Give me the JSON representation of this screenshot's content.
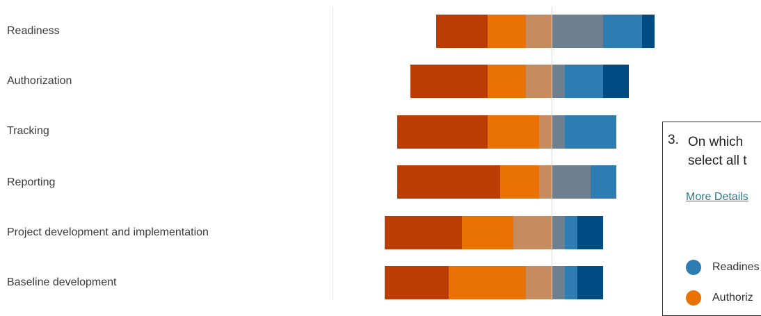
{
  "rows": [
    {
      "label": "Readiness"
    },
    {
      "label": "Authorization"
    },
    {
      "label": "Tracking"
    },
    {
      "label": "Reporting"
    },
    {
      "label": "Project development and implementation"
    },
    {
      "label": "Baseline development"
    }
  ],
  "colors": {
    "dark_orange": "#bb3d04",
    "orange": "#ea7104",
    "tan": "#c68b5e",
    "gray_blue": "#6e8090",
    "blue": "#2d7db3",
    "dark_blue": "#004b82"
  },
  "chart_data": {
    "type": "bar",
    "orientation": "horizontal",
    "stacking": "diverging",
    "categories": [
      "Readiness",
      "Authorization",
      "Tracking",
      "Reporting",
      "Project development and implementation",
      "Baseline development"
    ],
    "series": [
      {
        "color": "#bb3d04",
        "side": "negative",
        "values": [
          4,
          6,
          7,
          8,
          6,
          5
        ]
      },
      {
        "color": "#ea7104",
        "side": "negative",
        "values": [
          3,
          3,
          4,
          3,
          4,
          6
        ]
      },
      {
        "color": "#c68b5e",
        "side": "negative",
        "values": [
          2,
          2,
          1,
          1,
          3,
          2
        ]
      },
      {
        "color": "#6e8090",
        "side": "positive",
        "values": [
          4,
          1,
          1,
          3,
          1,
          1
        ]
      },
      {
        "color": "#2d7db3",
        "side": "positive",
        "values": [
          3,
          3,
          4,
          2,
          1,
          1
        ]
      },
      {
        "color": "#004b82",
        "side": "positive",
        "values": [
          1,
          2,
          0,
          0,
          2,
          2
        ]
      }
    ],
    "title": "",
    "xlabel": "",
    "ylabel": "",
    "grid": false,
    "legend": "none"
  },
  "popup": {
    "question_number": "3.",
    "question_line1": "On which",
    "question_line2": "select all t",
    "more_details": "More Details",
    "legend": [
      {
        "label": "Readines",
        "color": "#2d7db3"
      },
      {
        "label": "Authoriz",
        "color": "#ea7104"
      }
    ]
  }
}
